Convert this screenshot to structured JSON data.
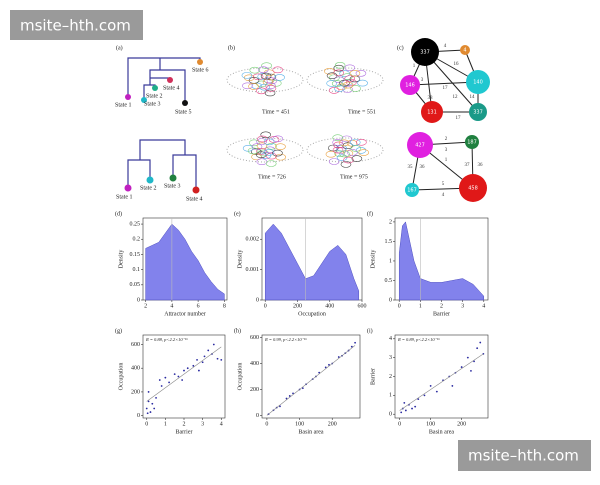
{
  "watermarks": [
    "msite–hth.com",
    "msite–hth.com"
  ],
  "panels": {
    "a": {
      "label": "(a)",
      "states_top": [
        "State 6",
        "State 4",
        "State 2",
        "State 3",
        "State 1",
        "State 5"
      ],
      "states_bottom": [
        "State 1",
        "State 2",
        "State 3",
        "State 4"
      ]
    },
    "b": {
      "label": "(b)",
      "times": [
        "Time = 451",
        "Time = 551",
        "Time = 726",
        "Time = 975"
      ]
    },
    "c": {
      "label": "(c)",
      "top_nodes": [
        "337",
        "4",
        "146",
        "140",
        "131",
        "337"
      ],
      "top_edges": [
        "4",
        "16",
        "1",
        "3",
        "17",
        "12",
        "38",
        "14",
        "17"
      ],
      "bottom_nodes": [
        "427",
        "187",
        "167",
        "458"
      ],
      "bottom_edges": [
        "2",
        "3",
        "35",
        "36",
        "1",
        "37",
        "36",
        "5",
        "4"
      ]
    }
  },
  "chart_data": [
    {
      "type": "area",
      "label": "(d)",
      "xlabel": "Attractor number",
      "ylabel": "Density",
      "color": "#7474ea",
      "x": [
        2,
        2.5,
        3,
        3.5,
        4,
        4.5,
        5,
        5.5,
        6,
        6.5,
        7,
        7.5,
        8
      ],
      "values": [
        0.17,
        0.18,
        0.19,
        0.22,
        0.25,
        0.23,
        0.2,
        0.16,
        0.13,
        0.09,
        0.06,
        0.035,
        0.02
      ],
      "vline": 4,
      "xlim": [
        1.8,
        8.2
      ],
      "ylim": [
        0,
        0.27
      ],
      "xticks": [
        2,
        4,
        6,
        8
      ],
      "yticks": [
        0,
        0.05,
        0.1,
        0.15,
        0.2,
        0.25
      ]
    },
    {
      "type": "area",
      "label": "(e)",
      "xlabel": "Occupation",
      "ylabel": "Density",
      "color": "#7474ea",
      "x": [
        0,
        50,
        100,
        150,
        200,
        250,
        300,
        350,
        400,
        450,
        500,
        550,
        580
      ],
      "values": [
        0.0022,
        0.0025,
        0.0022,
        0.0017,
        0.0012,
        0.0007,
        0.0008,
        0.0012,
        0.0016,
        0.0018,
        0.0015,
        0.0007,
        0.0003
      ],
      "vline": 250,
      "xlim": [
        -20,
        600
      ],
      "ylim": [
        0,
        0.0027
      ],
      "xticks": [
        0,
        200,
        400,
        600
      ],
      "yticks": [
        0,
        0.001,
        0.002
      ]
    },
    {
      "type": "area",
      "label": "(f)",
      "xlabel": "Barrier",
      "ylabel": "Density",
      "color": "#7474ea",
      "x": [
        0,
        0.15,
        0.3,
        0.5,
        0.7,
        1,
        1.5,
        2,
        2.5,
        3,
        3.5,
        4
      ],
      "values": [
        1.2,
        1.9,
        2.0,
        1.5,
        1.0,
        0.55,
        0.45,
        0.45,
        0.5,
        0.55,
        0.4,
        0.1
      ],
      "vline": 1,
      "xlim": [
        -0.2,
        4.2
      ],
      "ylim": [
        0,
        2.1
      ],
      "xticks": [
        0,
        1,
        2,
        3,
        4
      ],
      "yticks": [
        0,
        0.5,
        1,
        1.5,
        2
      ]
    },
    {
      "type": "scatter",
      "label": "(g)",
      "annotation": "R = 0.88, p<2.2×10⁻¹⁶",
      "xlabel": "Barrier",
      "ylabel": "Occupation",
      "color": "#2a2aa0",
      "x": [
        0,
        0.1,
        0.2,
        0.1,
        0.3,
        0.5,
        0.7,
        0.8,
        1,
        1.2,
        1.5,
        1.7,
        2,
        2.2,
        2.5,
        2.7,
        3,
        3.1,
        3.3,
        3.5,
        3.6,
        3.8,
        4,
        0.05,
        0.4,
        2.8,
        1.9
      ],
      "values": [
        60,
        120,
        30,
        200,
        100,
        150,
        300,
        250,
        320,
        280,
        350,
        330,
        380,
        400,
        420,
        470,
        450,
        500,
        550,
        520,
        600,
        480,
        470,
        20,
        60,
        380,
        300
      ],
      "fit": {
        "x": [
          0,
          4
        ],
        "values": [
          120,
          580
        ]
      },
      "xlim": [
        -0.2,
        4.2
      ],
      "ylim": [
        -20,
        680
      ],
      "xticks": [
        0,
        1,
        2,
        3,
        4
      ],
      "yticks": [
        0,
        200,
        400,
        600
      ]
    },
    {
      "type": "scatter",
      "label": "(h)",
      "annotation": "R = 0.99, p<2.2×10⁻¹⁶",
      "xlabel": "Basin area",
      "ylabel": "Occupation",
      "color": "#2a2aa0",
      "x": [
        5,
        20,
        40,
        60,
        80,
        100,
        120,
        140,
        160,
        180,
        200,
        220,
        240,
        250,
        260,
        270,
        30,
        70,
        110,
        150,
        190,
        230
      ],
      "values": [
        10,
        40,
        70,
        130,
        170,
        200,
        240,
        280,
        330,
        370,
        400,
        450,
        480,
        500,
        530,
        560,
        60,
        150,
        210,
        300,
        390,
        460
      ],
      "fit": {
        "x": [
          0,
          270
        ],
        "values": [
          0,
          540
        ]
      },
      "xlim": [
        -15,
        285
      ],
      "ylim": [
        -20,
        620
      ],
      "xticks": [
        0,
        100,
        200
      ],
      "yticks": [
        0,
        200,
        400,
        600
      ]
    },
    {
      "type": "scatter",
      "label": "(i)",
      "annotation": "R = 0.89, p<2.2×10⁻¹⁶",
      "xlabel": "Basin area",
      "ylabel": "Barrier",
      "color": "#2a2aa0",
      "x": [
        5,
        10,
        20,
        30,
        40,
        60,
        80,
        100,
        120,
        140,
        160,
        180,
        200,
        220,
        240,
        250,
        260,
        270,
        50,
        15,
        170,
        230
      ],
      "values": [
        0.1,
        0.3,
        0.2,
        0.5,
        0.3,
        0.8,
        1,
        1.5,
        1.2,
        1.8,
        2,
        2.2,
        2.5,
        3,
        2.8,
        3.5,
        3.8,
        3.2,
        0.4,
        0.6,
        1.5,
        2.3
      ],
      "fit": {
        "x": [
          0,
          270
        ],
        "values": [
          0.2,
          3.2
        ]
      },
      "xlim": [
        -15,
        285
      ],
      "ylim": [
        -0.2,
        4.2
      ],
      "xticks": [
        0,
        100,
        200
      ],
      "yticks": [
        0,
        1,
        2,
        3,
        4
      ]
    }
  ]
}
